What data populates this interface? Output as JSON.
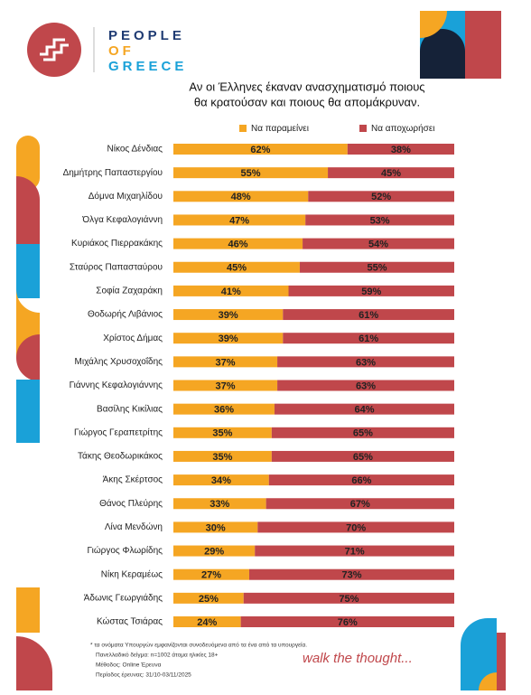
{
  "brand": {
    "name": [
      "PEOPLE",
      "OF",
      "GREECE"
    ],
    "tagline": "walk the thought..."
  },
  "chart_data": {
    "type": "stacked-bar",
    "title": [
      "Αν οι Έλληνες έκαναν ανασχηματισμό ποιους",
      "θα κρατούσαν και ποιους θα απομάκρυναν."
    ],
    "categories": [
      "Νίκος Δένδιας",
      "Δημήτρης Παπαστεργίου",
      "Δόμνα Μιχαηλίδου",
      "Όλγα Κεφαλογιάννη",
      "Κυριάκος Πιερρακάκης",
      "Σταύρος Παπασταύρου",
      "Σοφία Ζαχαράκη",
      "Θοδωρής Λιβάνιος",
      "Χρίστος Δήμας",
      "Μιχάλης Χρυσοχοΐδης",
      "Γιάννης Κεφαλογιάννης",
      "Βασίλης Κικίλιας",
      "Γιώργος Γεραπετρίτης",
      "Τάκης Θεοδωρικάκος",
      "Άκης Σκέρτσος",
      "Θάνος Πλεύρης",
      "Λίνα Μενδώνη",
      "Γιώργος Φλωρίδης",
      "Νίκη Κεραμέως",
      "Άδωνις Γεωργιάδης",
      "Κώστας Τσιάρας"
    ],
    "series": [
      {
        "name": "Να παραμείνει",
        "color": "#f5a623",
        "values": [
          62,
          55,
          48,
          47,
          46,
          45,
          41,
          39,
          39,
          37,
          37,
          36,
          35,
          35,
          34,
          33,
          30,
          29,
          27,
          25,
          24
        ],
        "value_labels": [
          "62%",
          "55%",
          "48%",
          "47%",
          "46%",
          "45%",
          "41%",
          "39%",
          "39%",
          "37%",
          "37%",
          "36%",
          "35%",
          "35%",
          "34%",
          "33%",
          "30%",
          "29%",
          "27%",
          "25%",
          "24%"
        ]
      },
      {
        "name": "Να αποχωρήσει",
        "color": "#c0474b",
        "values": [
          38,
          45,
          52,
          53,
          54,
          55,
          59,
          61,
          61,
          63,
          63,
          64,
          65,
          65,
          66,
          67,
          70,
          71,
          73,
          75,
          76
        ],
        "value_labels": [
          "38%",
          "45%",
          "52%",
          "53%",
          "54%",
          "55%",
          "59%",
          "61%",
          "61%",
          "63%",
          "63%",
          "64%",
          "65%",
          "65%",
          "66%",
          "67%",
          "70%",
          "71%",
          "73%",
          "75%",
          "76%"
        ]
      }
    ],
    "notes": [
      "* τα ονόματα Υπουργών εμφανίζονται συνοδευόμενα από τα ένα από τα υπουργεία.",
      "Πανελλαδικό δείγμα: n=1002 άτομα ηλικίες 18+",
      "Μέθοδος: Online Έρευνα",
      "Περίοδος έρευνας: 31/10-03/11/2025"
    ]
  }
}
